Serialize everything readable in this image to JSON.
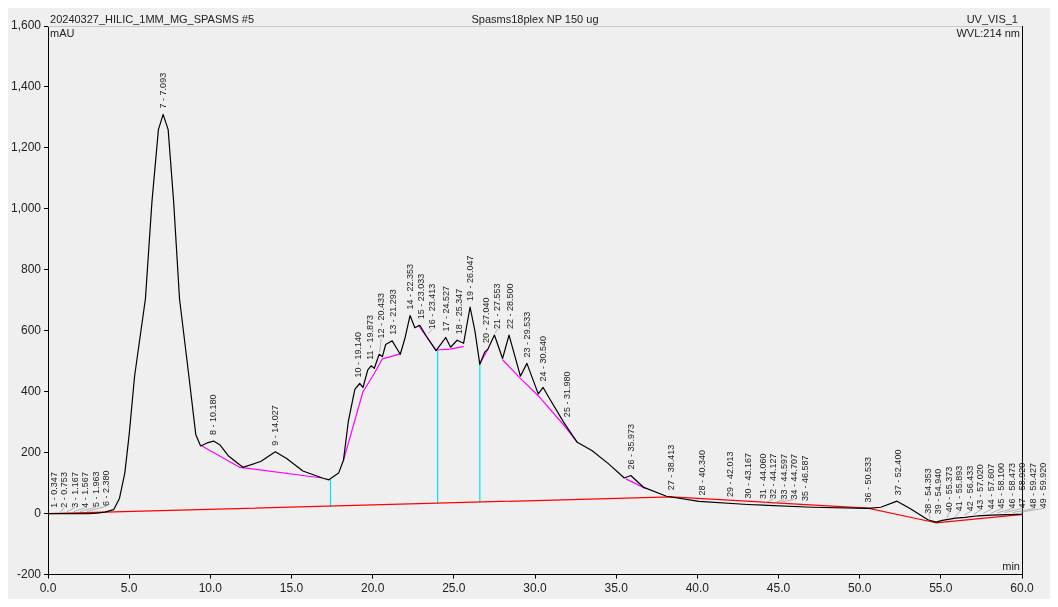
{
  "chart_data": {
    "type": "line",
    "title": "Spasms18plex NP 150 ug",
    "xlabel": "min",
    "ylabel": "mAU",
    "xlim": [
      0,
      60
    ],
    "xticks": [
      {
        "value": 0,
        "label": "0.0"
      },
      {
        "value": 5,
        "label": "5.0"
      },
      {
        "value": 10,
        "label": "10.0"
      },
      {
        "value": 15,
        "label": "15.0"
      },
      {
        "value": 20,
        "label": "20.0"
      },
      {
        "value": 25,
        "label": "25.0"
      },
      {
        "value": 30,
        "label": "30.0"
      },
      {
        "value": 35,
        "label": "35.0"
      },
      {
        "value": 40,
        "label": "40.0"
      },
      {
        "value": 45,
        "label": "45.0"
      },
      {
        "value": 50,
        "label": "50.0"
      },
      {
        "value": 55,
        "label": "55.0"
      },
      {
        "value": 60,
        "label": "60.0"
      }
    ],
    "ylim": [
      -200,
      1600
    ],
    "yticks": [
      -200,
      0,
      200,
      400,
      {
        "value": 600,
        "label": "600"
      },
      {
        "value": 800,
        "label": "800"
      },
      {
        "value": 1000,
        "label": "1,000"
      },
      {
        "value": 1200,
        "label": "1,200"
      },
      {
        "value": 1400,
        "label": "1,400"
      },
      {
        "value": 1600,
        "label": "1,600"
      }
    ],
    "grid": false,
    "legend": false,
    "marker": "none",
    "series": [
      {
        "color": "#000000",
        "x": [
          0,
          2.5,
          3.0,
          3.5,
          4.04,
          4.4,
          4.73,
          5.0,
          5.33,
          6.0,
          6.4,
          6.8,
          7.09,
          7.4,
          7.74,
          8.1,
          8.68,
          9.1,
          9.4,
          9.8,
          10.2,
          10.6,
          11.1,
          12.0,
          13.1,
          14.0,
          14.7,
          15.7,
          16.9,
          17.3,
          17.9,
          18.2,
          18.5,
          18.9,
          19.2,
          19.4,
          19.7,
          19.9,
          20.1,
          20.4,
          20.6,
          20.8,
          21.2,
          21.7,
          22.0,
          22.3,
          22.6,
          22.9,
          23.3,
          23.9,
          24.2,
          24.5,
          24.8,
          25.2,
          25.6,
          26.0,
          26.3,
          26.6,
          26.9,
          27.1,
          27.5,
          28.0,
          28.4,
          29.1,
          29.5,
          30.2,
          30.5,
          30.9,
          31.8,
          32.6,
          33.5,
          34.5,
          35.5,
          35.9,
          36.7,
          38.1,
          40.1,
          43.1,
          47.1,
          50.5,
          51.3,
          52.3,
          53.1,
          54.2,
          54.7,
          55.1,
          55.9,
          56.5,
          57.3,
          58.1,
          59.1,
          60
        ],
        "values": [
          0,
          0,
          2,
          5,
          13,
          50,
          133,
          260,
          450,
          705,
          1022,
          1260,
          1310,
          1260,
          1022,
          705,
          450,
          260,
          222,
          232,
          238,
          225,
          190,
          152,
          171,
          203,
          181,
          140,
          117,
          111,
          133,
          175,
          303,
          408,
          427,
          414,
          472,
          485,
          477,
          523,
          515,
          555,
          567,
          523,
          578,
          650,
          610,
          618,
          583,
          535,
          556,
          578,
          546,
          569,
          559,
          678,
          599,
          490,
          530,
          540,
          586,
          509,
          586,
          451,
          493,
          393,
          414,
          377,
          297,
          234,
          207,
          165,
          117,
          125,
          86,
          57,
          40,
          30,
          21,
          17,
          21,
          41,
          17,
          -20,
          -28,
          -22,
          -15,
          -12,
          -7,
          -5,
          -3,
          -2
        ]
      },
      {
        "color": "#ff0000",
        "x": [
          0,
          38.4,
          50.5,
          54.7,
          60
        ],
        "values": [
          0,
          55,
          18,
          -30,
          -3
        ]
      },
      {
        "color": "#ff00ff",
        "x": [
          9.48,
          11.8,
          16.9,
          17.5,
          18.2,
          19.4,
          20.1,
          20.6,
          21.7,
          22.2,
          22.8,
          23.9,
          24.8,
          25.6,
          26.1,
          26.6,
          27.1,
          27.5,
          28.0,
          29.1,
          30.2,
          31.7,
          32.6,
          34,
          35.6,
          36.8
        ],
        "values": [
          222,
          152,
          117,
          null,
          175,
          400,
          460,
          508,
          524,
          null,
          619,
          537,
          540,
          549,
          null,
          492,
          540,
          null,
          505,
          444,
          387,
          295,
          235,
          null,
          114,
          83
        ]
      },
      {
        "color": "#00e5ee",
        "x": [
          17.4,
          17.4,
          20,
          24.0,
          24.0,
          25,
          26.6,
          26.6
        ],
        "values": [
          22,
          112,
          null,
          34,
          537,
          null,
          38,
          490
        ]
      }
    ],
    "annotations": [
      "20240327_HILIC_1MM_MG_SPASMS #5",
      "UV_VIS_1",
      "WVL:214 nm",
      {
        "text": "1 - 0.347",
        "x": 0.347,
        "y": 0
      },
      {
        "text": "2 - 0.753",
        "x": 0.753,
        "y": 0
      },
      {
        "text": "3 - 1.167",
        "x": 1.167,
        "y": 0
      },
      {
        "text": "4 - 1.567",
        "x": 1.567,
        "y": 0
      },
      {
        "text": "5 - 1.963",
        "x": 1.963,
        "y": 0
      },
      {
        "text": "6 - 2.380",
        "x": 2.38,
        "y": 0
      },
      {
        "text": "7 - 7.093",
        "x": 7.093,
        "y": 1310
      },
      {
        "text": "8 - 10.180",
        "x": 10.18,
        "y": 238
      },
      {
        "text": "9 - 14.027",
        "x": 14.027,
        "y": 203
      },
      {
        "text": "10 - 19.140",
        "x": 19.14,
        "y": 427
      },
      {
        "text": "11 - 19.873",
        "x": 19.873,
        "y": 485
      },
      {
        "text": "12 - 20.433",
        "x": 20.433,
        "y": 523
      },
      {
        "text": "13 - 21.293",
        "x": 21.293,
        "y": 567
      },
      {
        "text": "14 - 22.353",
        "x": 22.353,
        "y": 650
      },
      {
        "text": "15 - 23.033",
        "x": 23.033,
        "y": 618
      },
      {
        "text": "16 - 23.413",
        "x": 23.413,
        "y": 585
      },
      {
        "text": "17 - 24.527",
        "x": 24.527,
        "y": 578
      },
      {
        "text": "18 - 25.347",
        "x": 25.347,
        "y": 569
      },
      {
        "text": "19 - 26.047",
        "x": 26.047,
        "y": 678
      },
      {
        "text": "20 - 27.040",
        "x": 27.04,
        "y": 540
      },
      {
        "text": "21 - 27.553",
        "x": 27.553,
        "y": 586
      },
      {
        "text": "22 - 28.500",
        "x": 28.5,
        "y": 586
      },
      {
        "text": "23 - 29.533",
        "x": 29.533,
        "y": 493
      },
      {
        "text": "24 - 30.540",
        "x": 30.54,
        "y": 414
      },
      {
        "text": "25 - 31.980",
        "x": 31.98,
        "y": 297
      },
      {
        "text": "26 - 35.973",
        "x": 35.973,
        "y": 125
      },
      {
        "text": "27 - 38.413",
        "x": 38.413,
        "y": 57
      },
      {
        "text": "28 - 40.340",
        "x": 40.34,
        "y": 40
      },
      {
        "text": "29 - 42.013",
        "x": 42.013,
        "y": 35
      },
      {
        "text": "30 - 43.167",
        "x": 43.167,
        "y": 30
      },
      {
        "text": "31 - 44.060",
        "x": 44.06,
        "y": 28
      },
      {
        "text": "32 - 44.127",
        "x": 44.127,
        "y": 28
      },
      {
        "text": "33 - 44.597",
        "x": 44.597,
        "y": 27
      },
      {
        "text": "34 - 44.707",
        "x": 44.707,
        "y": 27
      },
      {
        "text": "35 - 46.587",
        "x": 46.587,
        "y": 22
      },
      {
        "text": "36 - 50.533",
        "x": 50.533,
        "y": 17
      },
      {
        "text": "37 - 52.400",
        "x": 52.4,
        "y": 41
      },
      {
        "text": "38 - 54.353",
        "x": 54.353,
        "y": -22
      },
      {
        "text": "39 - 54.940",
        "x": 54.94,
        "y": -27
      },
      {
        "text": "40 - 55.373",
        "x": 55.373,
        "y": -20
      },
      {
        "text": "41 - 55.893",
        "x": 55.893,
        "y": -15
      },
      {
        "text": "42 - 56.433",
        "x": 56.433,
        "y": -12
      },
      {
        "text": "43 - 57.020",
        "x": 57.02,
        "y": -9
      },
      {
        "text": "44 - 57.607",
        "x": 57.607,
        "y": -6
      },
      {
        "text": "45 - 58.100",
        "x": 58.1,
        "y": -5
      },
      {
        "text": "46 - 58.473",
        "x": 58.473,
        "y": -4
      },
      {
        "text": "47 - 58.920",
        "x": 58.92,
        "y": -3
      },
      {
        "text": "48 - 59.427",
        "x": 59.427,
        "y": -3
      },
      {
        "text": "49 - 59.920",
        "x": 59.92,
        "y": -2
      }
    ]
  }
}
